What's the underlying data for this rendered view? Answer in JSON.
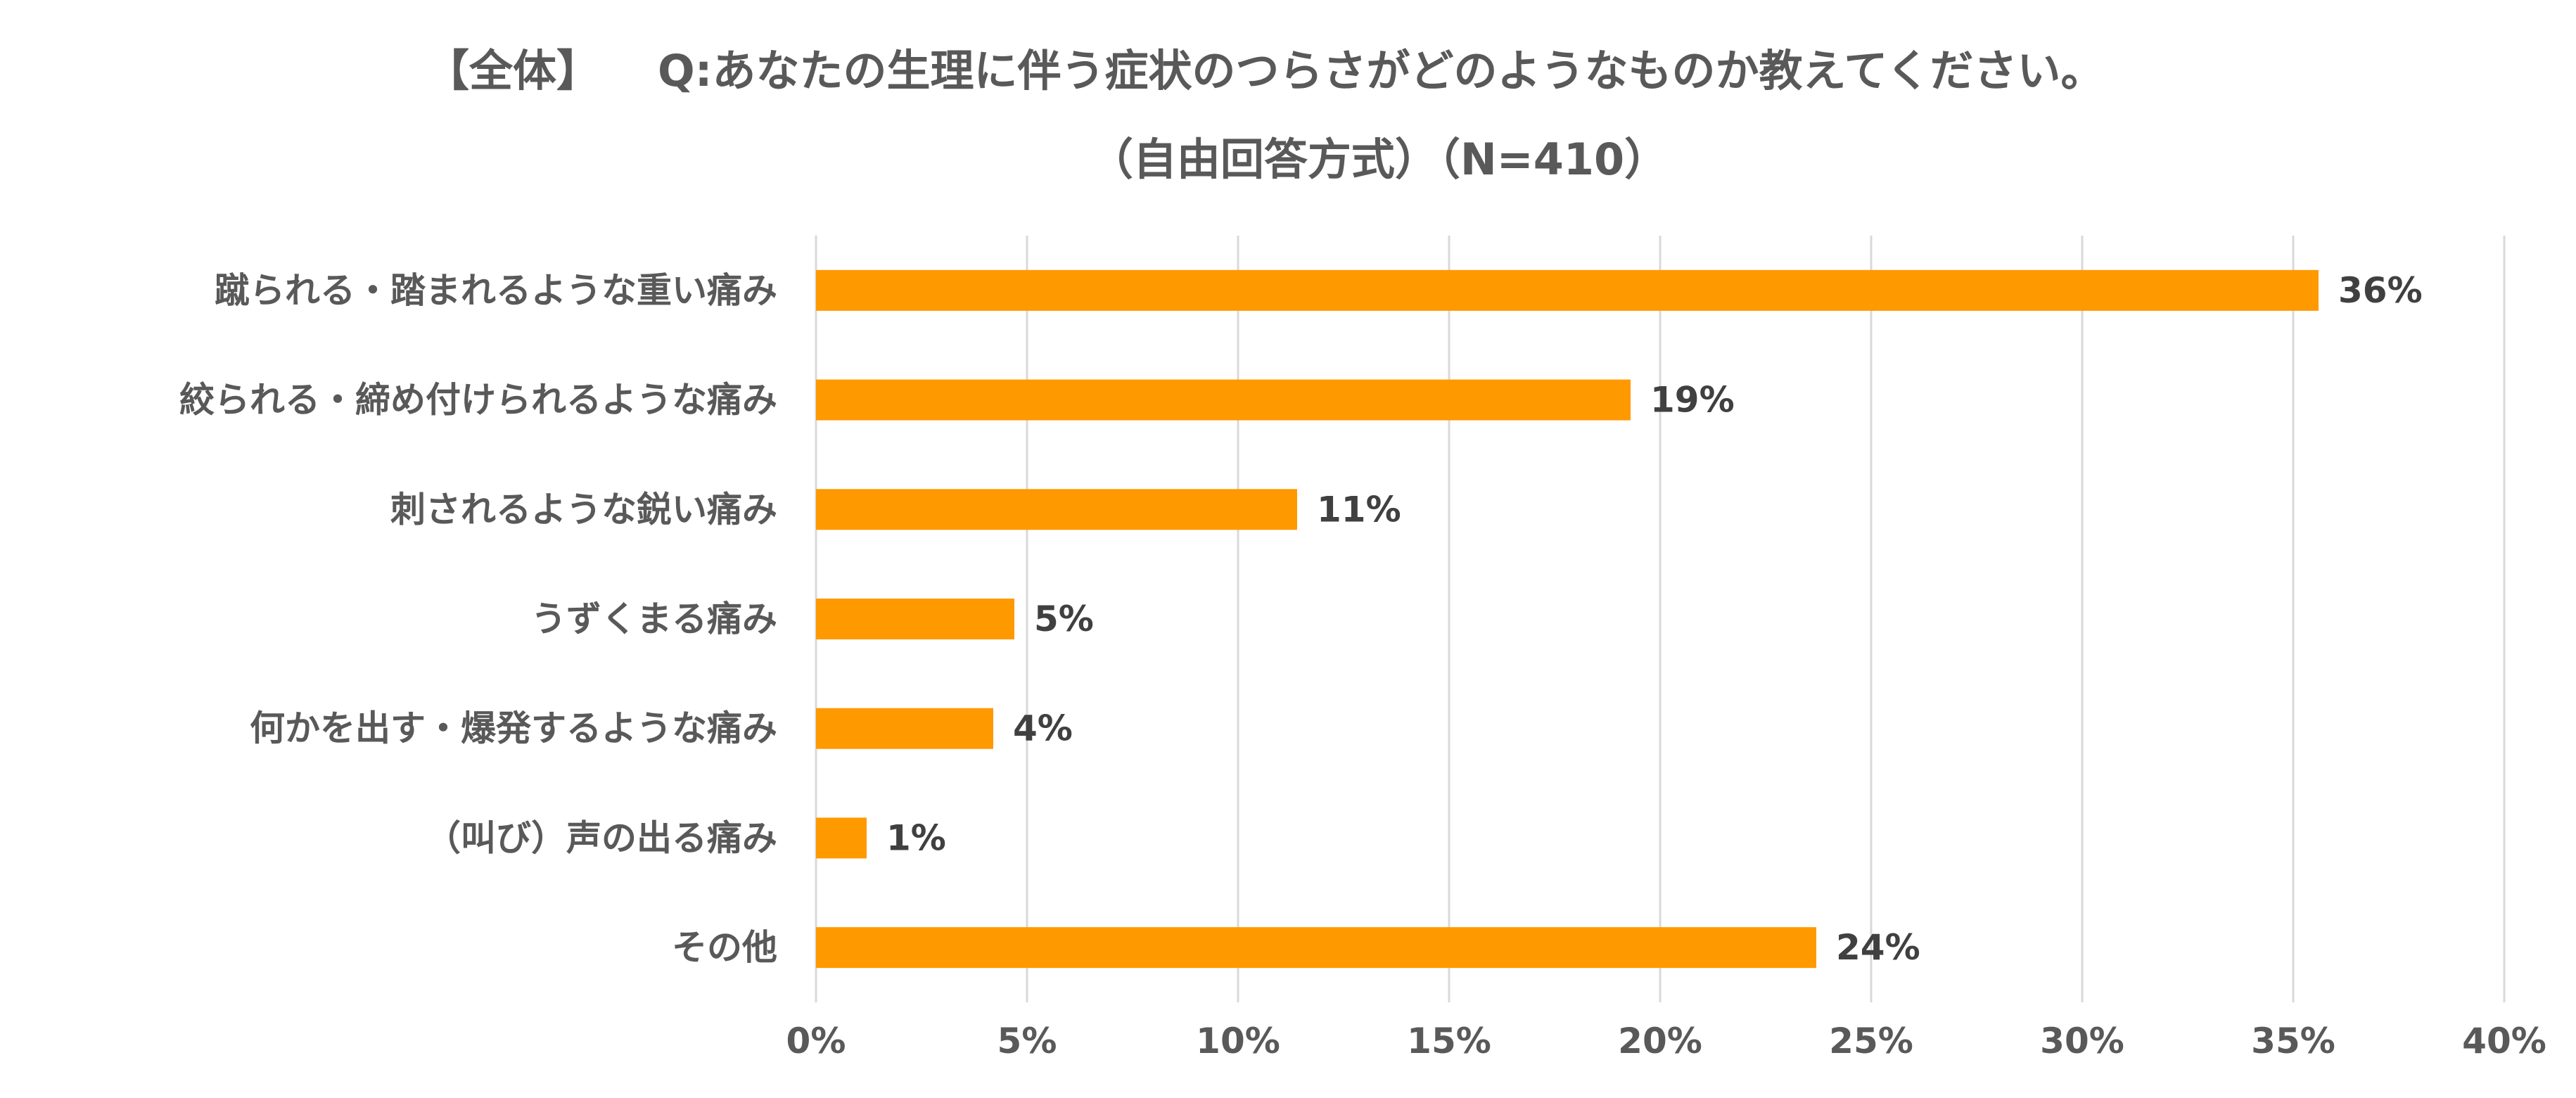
{
  "chart_data": {
    "type": "bar",
    "orientation": "horizontal",
    "title_line1_prefix": "【全体】",
    "title_line1_question": "Q:あなたの生理に伴う症状のつらさがどのようなものか教えてください。",
    "title_line2": "（自由回答方式）（N=410）",
    "categories": [
      "蹴られる・踏まれるような重い痛み",
      "絞られる・締め付けられるような痛み",
      "刺されるような鋭い痛み",
      "うずくまる痛み",
      "何かを出す・爆発するような痛み",
      "（叫び）声の出る痛み",
      "その他"
    ],
    "values": [
      35.6,
      19.3,
      11.4,
      4.7,
      4.2,
      1.2,
      23.7
    ],
    "value_labels": [
      "36%",
      "19%",
      "11%",
      "5%",
      "4%",
      "1%",
      "24%"
    ],
    "xlim": [
      0,
      40
    ],
    "x_ticks": [
      0,
      5,
      10,
      15,
      20,
      25,
      30,
      35,
      40
    ],
    "x_tick_labels": [
      "0%",
      "5%",
      "10%",
      "15%",
      "20%",
      "25%",
      "30%",
      "35%",
      "40%"
    ],
    "grid": true,
    "legend": "none",
    "bar_color": "#FF9900",
    "grid_color": "#D9D9D9",
    "text_color": "#595959",
    "data_label_color": "#404040"
  }
}
